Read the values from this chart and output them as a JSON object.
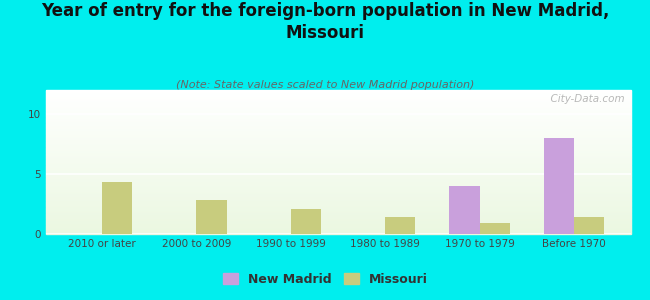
{
  "title": "Year of entry for the foreign-born population in New Madrid,\nMissouri",
  "subtitle": "(Note: State values scaled to New Madrid population)",
  "categories": [
    "2010 or later",
    "2000 to 2009",
    "1990 to 1999",
    "1980 to 1989",
    "1970 to 1979",
    "Before 1970"
  ],
  "new_madrid_values": [
    0,
    0,
    0,
    0,
    4.0,
    8.0
  ],
  "missouri_values": [
    4.3,
    2.8,
    2.1,
    1.4,
    0.9,
    1.4
  ],
  "new_madrid_color": "#c9a0dc",
  "missouri_color": "#c8cc7e",
  "background_color": "#00eeee",
  "ylim": [
    0,
    12
  ],
  "yticks": [
    0,
    5,
    10
  ],
  "bar_width": 0.32,
  "watermark": "  City-Data.com",
  "title_fontsize": 12,
  "subtitle_fontsize": 8,
  "tick_fontsize": 7.5,
  "legend_fontsize": 9
}
